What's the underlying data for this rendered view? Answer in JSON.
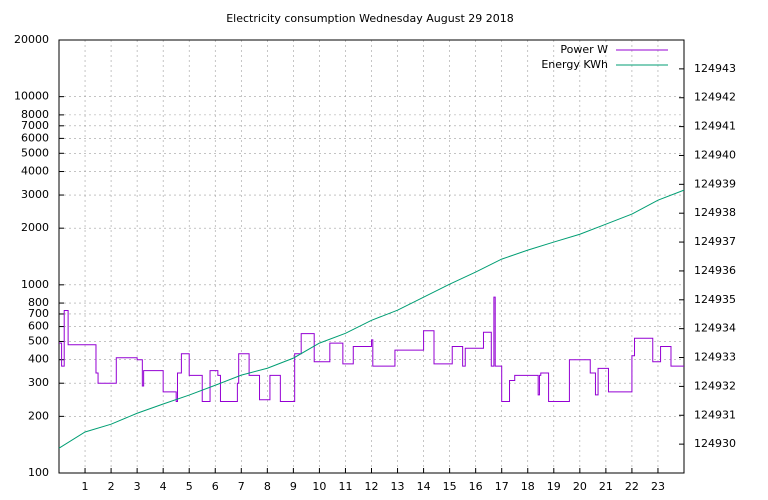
{
  "chart_data": {
    "type": "line",
    "title": "Electricity consumption Wednesday August 29 2018",
    "xlim": [
      0,
      24
    ],
    "xticks": [
      1,
      2,
      3,
      4,
      5,
      6,
      7,
      8,
      9,
      10,
      11,
      12,
      13,
      14,
      15,
      16,
      17,
      18,
      19,
      20,
      21,
      22,
      23
    ],
    "ylim": [
      100,
      20000
    ],
    "log_scale_y": true,
    "yticks": [
      100,
      200,
      300,
      400,
      500,
      600,
      700,
      800,
      1000,
      2000,
      3000,
      4000,
      5000,
      6000,
      7000,
      8000,
      10000,
      20000
    ],
    "y2lim": [
      124929,
      124944
    ],
    "y2ticks": [
      124930,
      124931,
      124932,
      124933,
      124934,
      124935,
      124936,
      124937,
      124938,
      124939,
      124940,
      124941,
      124942,
      124943
    ],
    "grid": true,
    "legend": "top-right",
    "series": [
      {
        "name": "Power W",
        "color": "#9400d3",
        "step": "post",
        "x": [
          0,
          0.1,
          0.2,
          0.35,
          1.42,
          1.5,
          2.2,
          3.0,
          3.2,
          3.25,
          4.0,
          4.5,
          4.55,
          4.7,
          5.0,
          5.5,
          5.8,
          6.1,
          6.2,
          6.85,
          6.9,
          7.3,
          7.7,
          8.1,
          8.5,
          9.05,
          9.3,
          9.8,
          10.4,
          10.9,
          11.3,
          12.0,
          12.05,
          12.9,
          14.0,
          14.4,
          15.1,
          15.5,
          15.6,
          16.3,
          16.6,
          16.7,
          16.75,
          17.0,
          17.3,
          17.5,
          18.4,
          18.45,
          18.5,
          18.8,
          19.6,
          20.4,
          20.6,
          20.7,
          21.1,
          22.0,
          22.1,
          22.8,
          23.1,
          23.5
        ],
        "values": [
          490,
          370,
          730,
          480,
          340,
          300,
          410,
          400,
          290,
          350,
          270,
          240,
          340,
          430,
          330,
          240,
          350,
          330,
          240,
          300,
          430,
          330,
          245,
          330,
          240,
          430,
          550,
          390,
          490,
          380,
          470,
          510,
          370,
          450,
          570,
          380,
          470,
          370,
          460,
          560,
          370,
          860,
          370,
          240,
          310,
          330,
          260,
          330,
          340,
          240,
          400,
          340,
          260,
          360,
          270,
          420,
          520,
          390,
          470,
          370
        ]
      },
      {
        "name": "Energy KWh",
        "color": "#009e73",
        "axis": "y2",
        "x": [
          0,
          1,
          2,
          3,
          4,
          5,
          6,
          7,
          8,
          9,
          10,
          11,
          12,
          13,
          14,
          15,
          16,
          17,
          18,
          19,
          20,
          21,
          22,
          23,
          24
        ],
        "values": [
          124929.86,
          124930.42,
          124930.69,
          124931.07,
          124931.39,
          124931.7,
          124932.04,
          124932.39,
          124932.63,
          124932.98,
          124933.5,
          124933.84,
          124934.29,
          124934.64,
          124935.09,
          124935.54,
          124935.96,
          124936.41,
          124936.72,
          124937.0,
          124937.27,
          124937.62,
          124937.97,
          124938.45,
          124938.8
        ]
      }
    ]
  }
}
